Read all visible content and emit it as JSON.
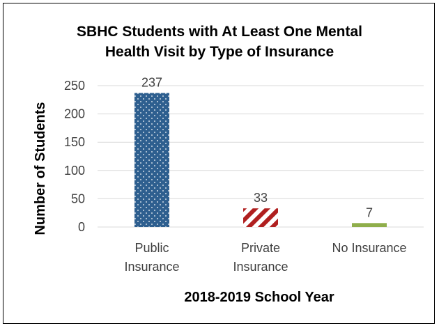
{
  "chart_data": {
    "type": "bar",
    "title_line1": "SBHC Students with At Least One Mental",
    "title_line2": "Health Visit by Type of Insurance",
    "xlabel": "2018-2019 School Year",
    "ylabel": "Number of Students",
    "ylim": [
      0,
      250
    ],
    "yticks": [
      "0",
      "50",
      "100",
      "150",
      "200",
      "250"
    ],
    "grid": true,
    "legend": "none",
    "categories": [
      {
        "line1": "Public",
        "line2": "Insurance"
      },
      {
        "line1": "Private",
        "line2": "Insurance"
      },
      {
        "line1": "No Insurance",
        "line2": ""
      }
    ],
    "values": [
      237,
      33,
      7
    ],
    "data_labels": [
      "237",
      "33",
      "7"
    ],
    "colors": {
      "public": "#2e5f8f",
      "private": "#b01f1f",
      "none": "#8fae4b",
      "grid": "#d9d9d9"
    }
  }
}
